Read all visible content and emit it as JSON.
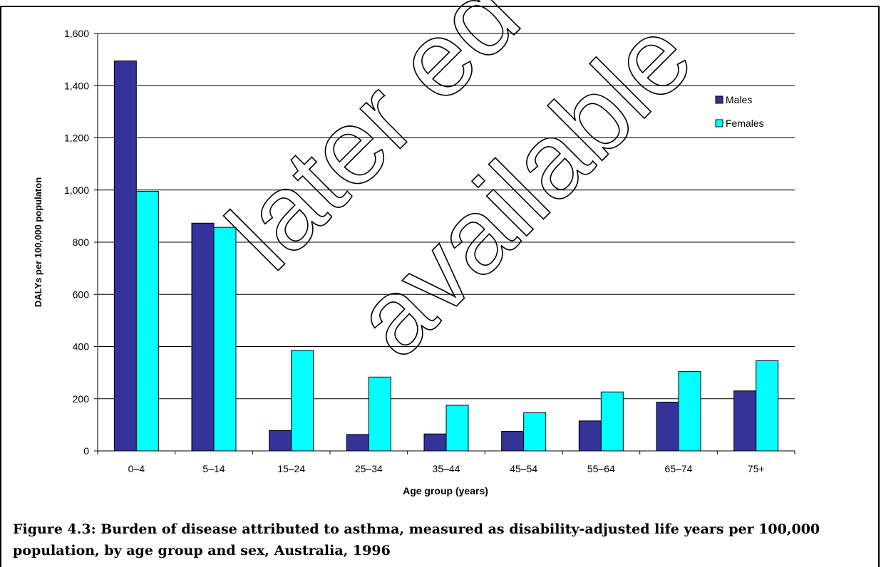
{
  "chart_data": {
    "type": "bar",
    "categories": [
      "0–4",
      "5–14",
      "15–24",
      "25–34",
      "35–44",
      "45–54",
      "55–64",
      "65–74",
      "75+"
    ],
    "series": [
      {
        "name": "Males",
        "color": "#333399",
        "values": [
          1495,
          873,
          78,
          63,
          65,
          75,
          115,
          187,
          230
        ]
      },
      {
        "name": "Females",
        "color": "#00FFFF",
        "values": [
          995,
          857,
          385,
          283,
          175,
          146,
          226,
          304,
          346
        ]
      }
    ],
    "title": "",
    "xlabel": "Age group (years)",
    "ylabel": "DALYs per 100,000 populaton",
    "ylim": [
      0,
      1600
    ],
    "yticks": [
      0,
      200,
      400,
      600,
      800,
      1000,
      1200,
      1400,
      1600
    ],
    "ytick_labels": [
      "0",
      "200",
      "400",
      "600",
      "800",
      "1,000",
      "1,200",
      "1,400",
      "1,600"
    ],
    "grid": true,
    "legend_position": "top-right"
  },
  "caption": "Figure 4.3: Burden of disease attributed to asthma, measured as disability-adjusted life years per 100,000 population, by age group and sex, Australia, 1996",
  "watermark": {
    "line1": "later ed",
    "line2": "available"
  }
}
